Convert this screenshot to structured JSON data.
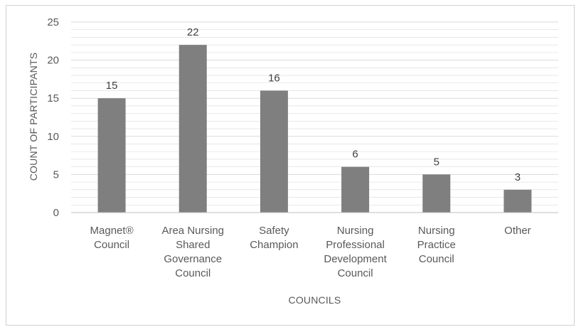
{
  "chart_data": {
    "type": "bar",
    "categories": [
      [
        "Magnet®",
        "Council"
      ],
      [
        "Area Nursing",
        "Shared",
        "Governance",
        "Council"
      ],
      [
        "Safety",
        "Champion"
      ],
      [
        "Nursing",
        "Professional",
        "Development",
        "Council"
      ],
      [
        "Nursing",
        "Practice",
        "Council"
      ],
      [
        "Other"
      ]
    ],
    "values": [
      15,
      22,
      16,
      6,
      5,
      3
    ],
    "xlabel": "COUNCILS",
    "ylabel": "COUNT OF PARTICIPANTS",
    "ylim": [
      0,
      25
    ],
    "yticks": [
      0,
      5,
      10,
      15,
      20,
      25
    ],
    "minor_gridlines": true,
    "bar_color": "#7f7f7f",
    "grid_color": "#d9d9d9",
    "data_labels": true
  }
}
